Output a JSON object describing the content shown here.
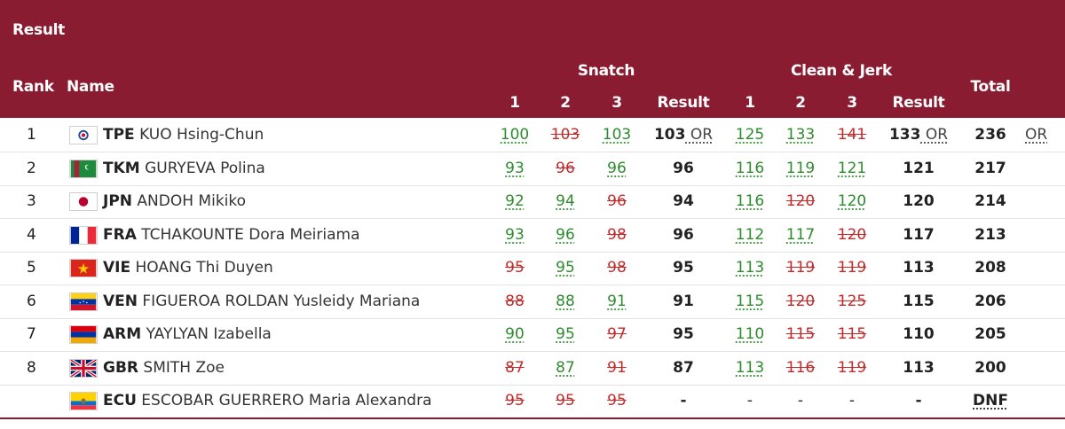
{
  "header": {
    "title": "Result",
    "rank": "Rank",
    "name": "Name",
    "snatch": "Snatch",
    "clean_jerk": "Clean & Jerk",
    "attempt1": "1",
    "attempt2": "2",
    "attempt3": "3",
    "result": "Result",
    "total": "Total"
  },
  "colors": {
    "header_bg": "#8a1c32",
    "good_lift": "#2e8b2e",
    "no_lift": "#c22b2b"
  },
  "rows": [
    {
      "rank": "1",
      "flag": "tpe-flag-icon",
      "noc": "TPE",
      "name": "KUO Hsing-Chun",
      "snatch": [
        {
          "v": "100",
          "ok": true
        },
        {
          "v": "103",
          "ok": false
        },
        {
          "v": "103",
          "ok": true
        }
      ],
      "snatch_result": "103",
      "snatch_note": "OR",
      "cj": [
        {
          "v": "125",
          "ok": true
        },
        {
          "v": "133",
          "ok": true
        },
        {
          "v": "141",
          "ok": false
        }
      ],
      "cj_result": "133",
      "cj_note": "OR",
      "total": "236",
      "total_note": "OR"
    },
    {
      "rank": "2",
      "flag": "tkm-flag-icon",
      "noc": "TKM",
      "name": "GURYEVA Polina",
      "snatch": [
        {
          "v": "93",
          "ok": true
        },
        {
          "v": "96",
          "ok": false
        },
        {
          "v": "96",
          "ok": true
        }
      ],
      "snatch_result": "96",
      "snatch_note": "",
      "cj": [
        {
          "v": "116",
          "ok": true
        },
        {
          "v": "119",
          "ok": true
        },
        {
          "v": "121",
          "ok": true
        }
      ],
      "cj_result": "121",
      "cj_note": "",
      "total": "217",
      "total_note": ""
    },
    {
      "rank": "3",
      "flag": "jpn-flag-icon",
      "noc": "JPN",
      "name": "ANDOH Mikiko",
      "snatch": [
        {
          "v": "92",
          "ok": true
        },
        {
          "v": "94",
          "ok": true
        },
        {
          "v": "96",
          "ok": false
        }
      ],
      "snatch_result": "94",
      "snatch_note": "",
      "cj": [
        {
          "v": "116",
          "ok": true
        },
        {
          "v": "120",
          "ok": false
        },
        {
          "v": "120",
          "ok": true
        }
      ],
      "cj_result": "120",
      "cj_note": "",
      "total": "214",
      "total_note": ""
    },
    {
      "rank": "4",
      "flag": "fra-flag-icon",
      "noc": "FRA",
      "name": "TCHAKOUNTE Dora Meiriama",
      "snatch": [
        {
          "v": "93",
          "ok": true
        },
        {
          "v": "96",
          "ok": true
        },
        {
          "v": "98",
          "ok": false
        }
      ],
      "snatch_result": "96",
      "snatch_note": "",
      "cj": [
        {
          "v": "112",
          "ok": true
        },
        {
          "v": "117",
          "ok": true
        },
        {
          "v": "120",
          "ok": false
        }
      ],
      "cj_result": "117",
      "cj_note": "",
      "total": "213",
      "total_note": ""
    },
    {
      "rank": "5",
      "flag": "vie-flag-icon",
      "noc": "VIE",
      "name": "HOANG Thi Duyen",
      "snatch": [
        {
          "v": "95",
          "ok": false
        },
        {
          "v": "95",
          "ok": true
        },
        {
          "v": "98",
          "ok": false
        }
      ],
      "snatch_result": "95",
      "snatch_note": "",
      "cj": [
        {
          "v": "113",
          "ok": true
        },
        {
          "v": "119",
          "ok": false
        },
        {
          "v": "119",
          "ok": false
        }
      ],
      "cj_result": "113",
      "cj_note": "",
      "total": "208",
      "total_note": ""
    },
    {
      "rank": "6",
      "flag": "ven-flag-icon",
      "noc": "VEN",
      "name": "FIGUEROA ROLDAN Yusleidy Mariana",
      "snatch": [
        {
          "v": "88",
          "ok": false
        },
        {
          "v": "88",
          "ok": true
        },
        {
          "v": "91",
          "ok": true
        }
      ],
      "snatch_result": "91",
      "snatch_note": "",
      "cj": [
        {
          "v": "115",
          "ok": true
        },
        {
          "v": "120",
          "ok": false
        },
        {
          "v": "125",
          "ok": false
        }
      ],
      "cj_result": "115",
      "cj_note": "",
      "total": "206",
      "total_note": ""
    },
    {
      "rank": "7",
      "flag": "arm-flag-icon",
      "noc": "ARM",
      "name": "YAYLYAN Izabella",
      "snatch": [
        {
          "v": "90",
          "ok": true
        },
        {
          "v": "95",
          "ok": true
        },
        {
          "v": "97",
          "ok": false
        }
      ],
      "snatch_result": "95",
      "snatch_note": "",
      "cj": [
        {
          "v": "110",
          "ok": true
        },
        {
          "v": "115",
          "ok": false
        },
        {
          "v": "115",
          "ok": false
        }
      ],
      "cj_result": "110",
      "cj_note": "",
      "total": "205",
      "total_note": ""
    },
    {
      "rank": "8",
      "flag": "gbr-flag-icon",
      "noc": "GBR",
      "name": "SMITH Zoe",
      "snatch": [
        {
          "v": "87",
          "ok": false
        },
        {
          "v": "87",
          "ok": true
        },
        {
          "v": "91",
          "ok": false
        }
      ],
      "snatch_result": "87",
      "snatch_note": "",
      "cj": [
        {
          "v": "113",
          "ok": true
        },
        {
          "v": "116",
          "ok": false
        },
        {
          "v": "119",
          "ok": false
        }
      ],
      "cj_result": "113",
      "cj_note": "",
      "total": "200",
      "total_note": ""
    },
    {
      "rank": "",
      "flag": "ecu-flag-icon",
      "noc": "ECU",
      "name": "ESCOBAR GUERRERO Maria Alexandra",
      "snatch": [
        {
          "v": "95",
          "ok": false
        },
        {
          "v": "95",
          "ok": false
        },
        {
          "v": "95",
          "ok": false
        }
      ],
      "snatch_result": "-",
      "snatch_note": "",
      "cj": [
        {
          "v": "-",
          "ok": true
        },
        {
          "v": "-",
          "ok": true
        },
        {
          "v": "-",
          "ok": true
        }
      ],
      "cj_result": "-",
      "cj_note": "",
      "total": "DNF",
      "total_note": ""
    }
  ]
}
